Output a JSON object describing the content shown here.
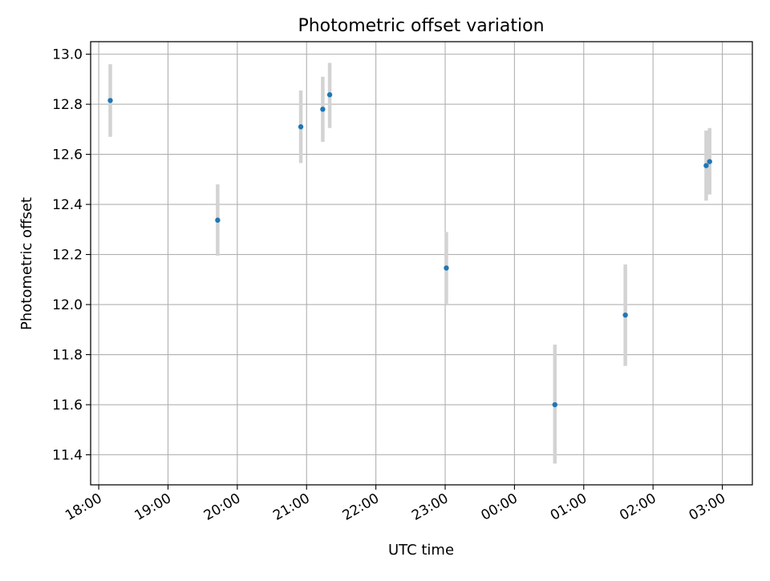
{
  "chart_data": {
    "type": "scatter",
    "title": "Photometric offset variation",
    "xlabel": "UTC time",
    "ylabel": "Photometric offset",
    "x_tick_labels": [
      "18:00",
      "19:00",
      "20:00",
      "21:00",
      "22:00",
      "23:00",
      "00:00",
      "01:00",
      "02:00",
      "03:00"
    ],
    "y_tick_labels": [
      "11.4",
      "11.6",
      "11.8",
      "12.0",
      "12.2",
      "12.4",
      "12.6",
      "12.8",
      "13.0"
    ],
    "y_ticks": [
      11.4,
      11.6,
      11.8,
      12.0,
      12.2,
      12.4,
      12.6,
      12.8,
      13.0
    ],
    "x_axis": {
      "start": "17:53",
      "end": "03:26"
    },
    "ylim": [
      11.28,
      13.05
    ],
    "grid": true,
    "marker_color": "#1f77b4",
    "errorbar_color": "#d3d3d3",
    "points": [
      {
        "time": "18:10",
        "y": 12.815,
        "y_err_low": 12.67,
        "y_err_high": 12.96
      },
      {
        "time": "19:43",
        "y": 12.337,
        "y_err_low": 12.195,
        "y_err_high": 12.48
      },
      {
        "time": "20:55",
        "y": 12.71,
        "y_err_low": 12.565,
        "y_err_high": 12.855
      },
      {
        "time": "21:14",
        "y": 12.78,
        "y_err_low": 12.65,
        "y_err_high": 12.91
      },
      {
        "time": "21:20",
        "y": 12.838,
        "y_err_low": 12.705,
        "y_err_high": 12.965
      },
      {
        "time": "23:01",
        "y": 12.146,
        "y_err_low": 12.0,
        "y_err_high": 12.29
      },
      {
        "time": "00:35",
        "y": 11.6,
        "y_err_low": 11.365,
        "y_err_high": 11.84
      },
      {
        "time": "01:36",
        "y": 11.958,
        "y_err_low": 11.755,
        "y_err_high": 12.16
      },
      {
        "time": "02:46",
        "y": 12.555,
        "y_err_low": 12.415,
        "y_err_high": 12.695
      },
      {
        "time": "02:49",
        "y": 12.571,
        "y_err_low": 12.44,
        "y_err_high": 12.705
      }
    ]
  }
}
